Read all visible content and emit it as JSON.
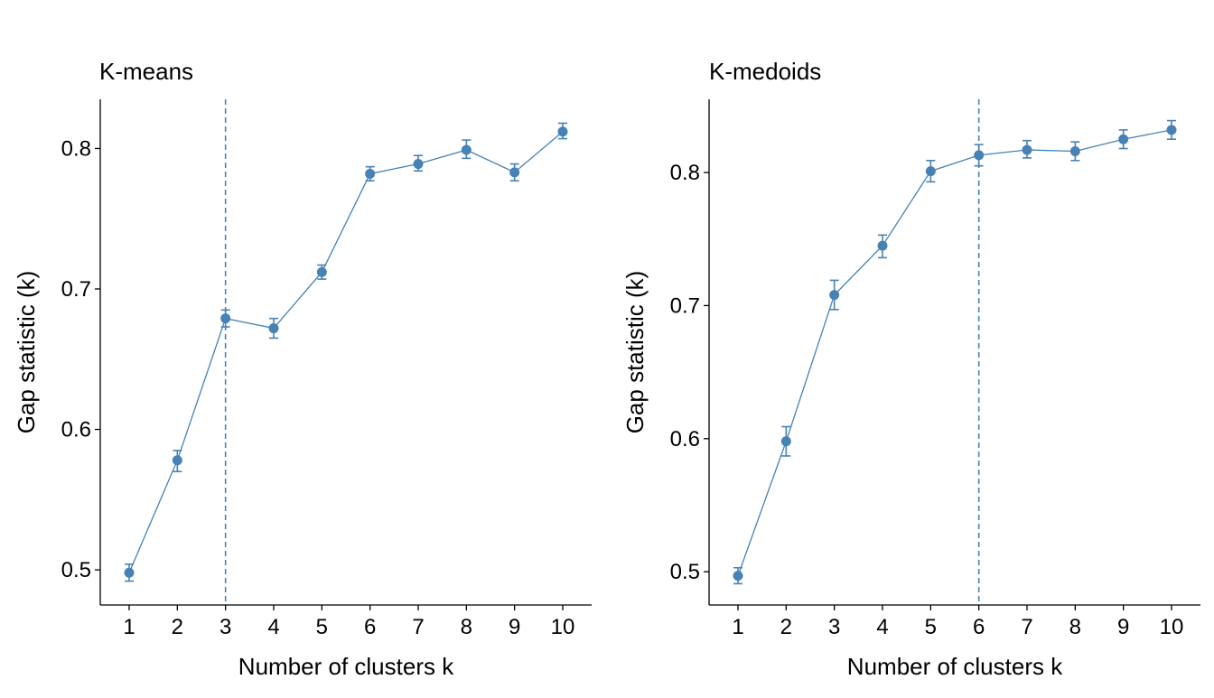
{
  "chart_data": [
    {
      "type": "line",
      "title": "K-means",
      "xlabel": "Number of clusters k",
      "ylabel": "Gap statistic (k)",
      "categories": [
        "1",
        "2",
        "3",
        "4",
        "5",
        "6",
        "7",
        "8",
        "9",
        "10"
      ],
      "x": [
        1,
        2,
        3,
        4,
        5,
        6,
        7,
        8,
        9,
        10
      ],
      "values": [
        0.498,
        0.578,
        0.679,
        0.672,
        0.712,
        0.782,
        0.789,
        0.799,
        0.783,
        0.812
      ],
      "error_low": [
        0.492,
        0.57,
        0.673,
        0.665,
        0.707,
        0.777,
        0.784,
        0.793,
        0.777,
        0.807
      ],
      "error_high": [
        0.504,
        0.585,
        0.685,
        0.679,
        0.717,
        0.787,
        0.795,
        0.806,
        0.789,
        0.818
      ],
      "optimal_k": 3,
      "ylim": [
        0.475,
        0.835
      ],
      "yticks": [
        "0.5",
        "0.6",
        "0.7",
        "0.8"
      ],
      "ytick_values": [
        0.5,
        0.6,
        0.7,
        0.8
      ],
      "grid": false,
      "color": "#4682B4"
    },
    {
      "type": "line",
      "title": "K-medoids",
      "xlabel": "Number of clusters k",
      "ylabel": "Gap statistic (k)",
      "categories": [
        "1",
        "2",
        "3",
        "4",
        "5",
        "6",
        "7",
        "8",
        "9",
        "10"
      ],
      "x": [
        1,
        2,
        3,
        4,
        5,
        6,
        7,
        8,
        9,
        10
      ],
      "values": [
        0.497,
        0.598,
        0.708,
        0.745,
        0.801,
        0.813,
        0.817,
        0.816,
        0.825,
        0.832
      ],
      "error_low": [
        0.491,
        0.587,
        0.697,
        0.736,
        0.793,
        0.805,
        0.811,
        0.809,
        0.818,
        0.825
      ],
      "error_high": [
        0.503,
        0.609,
        0.719,
        0.753,
        0.809,
        0.821,
        0.824,
        0.823,
        0.832,
        0.839
      ],
      "optimal_k": 6,
      "ylim": [
        0.475,
        0.855
      ],
      "yticks": [
        "0.5",
        "0.6",
        "0.7",
        "0.8"
      ],
      "ytick_values": [
        0.5,
        0.6,
        0.7,
        0.8
      ],
      "grid": false,
      "color": "#4682B4"
    }
  ]
}
